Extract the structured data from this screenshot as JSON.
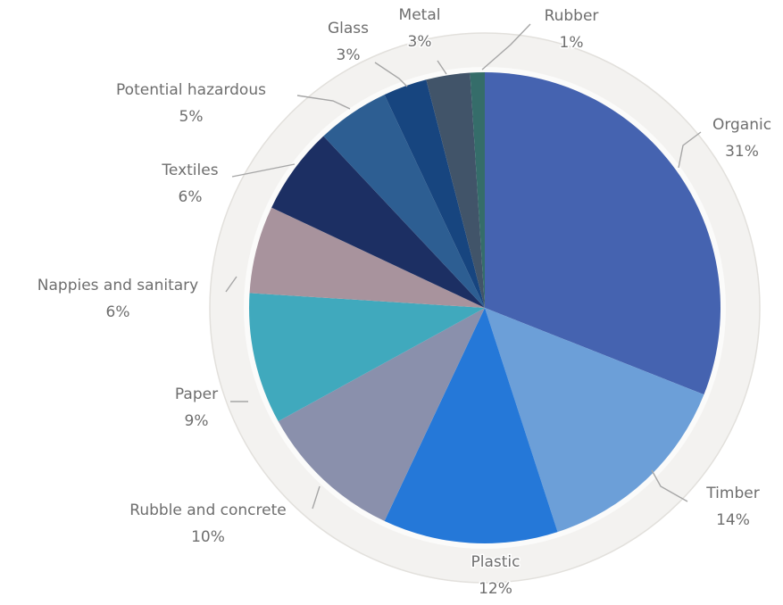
{
  "chart_data": {
    "type": "pie",
    "title": "",
    "start_angle_deg": 0,
    "direction": "clockwise",
    "slices": [
      {
        "label": "Organic",
        "value": 31,
        "value_label": "31%",
        "color": "#4563b0"
      },
      {
        "label": "Timber",
        "value": 14,
        "value_label": "14%",
        "color": "#6c9fd8"
      },
      {
        "label": "Plastic",
        "value": 12,
        "value_label": "12%",
        "color": "#2578d8"
      },
      {
        "label": "Rubble and concrete",
        "value": 10,
        "value_label": "10%",
        "color": "#8a90ac"
      },
      {
        "label": "Paper",
        "value": 9,
        "value_label": "9%",
        "color": "#40a9bd"
      },
      {
        "label": "Nappies and sanitary",
        "value": 6,
        "value_label": "6%",
        "color": "#a8939d"
      },
      {
        "label": "Textiles",
        "value": 6,
        "value_label": "6%",
        "color": "#1c2f63"
      },
      {
        "label": "Potential hazardous",
        "value": 5,
        "value_label": "5%",
        "color": "#2d5e92"
      },
      {
        "label": "Glass",
        "value": 3,
        "value_label": "3%",
        "color": "#17457f"
      },
      {
        "label": "Metal",
        "value": 3,
        "value_label": "3%",
        "color": "#415469"
      },
      {
        "label": "Rubber",
        "value": 1,
        "value_label": "1%",
        "color": "#356d6a"
      }
    ],
    "leader_color": "#a6a6a6",
    "label_color": "#6e6e6e"
  }
}
